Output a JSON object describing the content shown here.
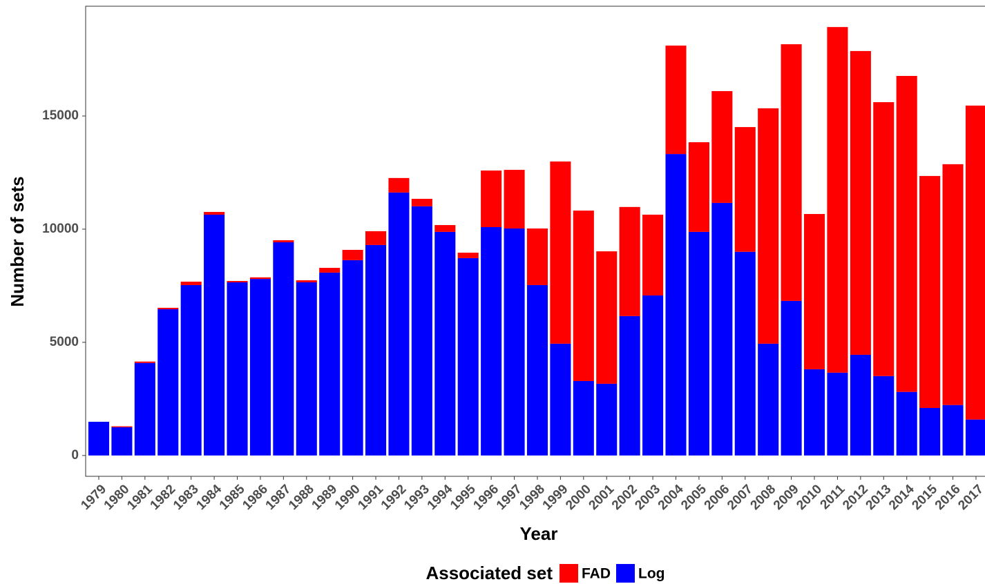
{
  "chart_data": {
    "type": "stacked_bar",
    "x_label": "Year",
    "y_label": "Number of sets",
    "legend_title": "Associated set",
    "legend": "bottom",
    "grid": false,
    "categories": [
      "1979",
      "1980",
      "1981",
      "1982",
      "1983",
      "1984",
      "1985",
      "1986",
      "1987",
      "1988",
      "1989",
      "1990",
      "1991",
      "1992",
      "1993",
      "1994",
      "1995",
      "1996",
      "1997",
      "1998",
      "1999",
      "2000",
      "2001",
      "2002",
      "2003",
      "2004",
      "2005",
      "2006",
      "2007",
      "2008",
      "2009",
      "2010",
      "2011",
      "2012",
      "2013",
      "2014",
      "2015",
      "2016",
      "2017"
    ],
    "series": [
      {
        "name": "FAD",
        "color": "#ff0000",
        "values": [
          0,
          40,
          60,
          65,
          150,
          120,
          60,
          70,
          90,
          90,
          210,
          455,
          610,
          640,
          330,
          300,
          240,
          2500,
          2590,
          2500,
          8050,
          7530,
          5850,
          4820,
          3570,
          4790,
          3960,
          4940,
          5510,
          10400,
          11340,
          6860,
          15270,
          13420,
          12100,
          13960,
          10250,
          10640,
          13870
        ]
      },
      {
        "name": "Log",
        "color": "#0000ff",
        "values": [
          1490,
          1250,
          4090,
          6460,
          7530,
          10640,
          7650,
          7800,
          9420,
          7650,
          8080,
          8630,
          9300,
          11620,
          11010,
          9880,
          8720,
          10090,
          10030,
          7530,
          4940,
          3290,
          3170,
          6160,
          7070,
          13320,
          9880,
          11160,
          9000,
          4940,
          6830,
          3810,
          3660,
          4450,
          3510,
          2810,
          2100,
          2230,
          1590
        ]
      }
    ],
    "ylim": [
      -920,
      19850
    ],
    "yticks": [
      0,
      5000,
      10000,
      15000
    ]
  }
}
